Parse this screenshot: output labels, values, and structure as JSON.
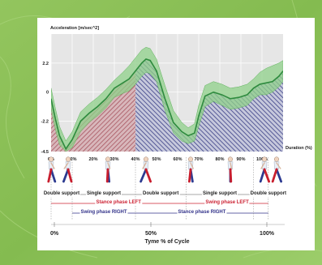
{
  "colors": {
    "stance_left": "#cc2233",
    "swing_right": "#33338a",
    "line_green": "#2e8b3e",
    "band_green": "#8fd08a",
    "area_red": "#a85560",
    "area_blue": "#3a3f86"
  },
  "chart_data": {
    "type": "line",
    "ylabel": "Acceleration [m/sec^2]",
    "xlabel": "Duration (%)",
    "y_ticks": [
      "2.2",
      "0",
      "-2.2",
      "-4.5"
    ],
    "x_ticks": [
      "0%",
      "10%",
      "20%",
      "30%",
      "40%",
      "50%",
      "60%",
      "70%",
      "80%",
      "90%",
      "100%"
    ],
    "xlim": [
      0,
      110
    ],
    "ylim": [
      -4.5,
      4.4
    ],
    "grid": true,
    "series": [
      {
        "x": [
          0,
          2,
          4,
          7,
          10,
          14,
          18,
          22,
          26,
          30,
          34,
          37,
          40,
          43,
          45,
          47,
          50,
          54,
          58,
          62,
          65,
          68,
          70,
          73,
          77,
          81,
          85,
          89,
          93,
          96,
          99,
          102,
          105,
          108,
          110
        ],
        "values": [
          -0.5,
          -2.0,
          -3.3,
          -4.3,
          -3.6,
          -2.2,
          -1.6,
          -1.1,
          -0.5,
          0.3,
          0.7,
          1.0,
          1.6,
          2.2,
          2.5,
          2.4,
          1.6,
          -0.5,
          -2.3,
          -3.0,
          -3.3,
          -3.1,
          -1.8,
          -0.3,
          0.0,
          -0.2,
          -0.5,
          -0.4,
          -0.2,
          0.3,
          0.6,
          0.7,
          0.8,
          1.2,
          1.6
        ],
        "upper": [
          0.3,
          -1.2,
          -2.6,
          -3.7,
          -3.0,
          -1.5,
          -0.9,
          -0.4,
          0.2,
          0.9,
          1.5,
          2.0,
          2.6,
          3.2,
          3.4,
          3.3,
          2.5,
          0.5,
          -1.4,
          -2.3,
          -2.7,
          -2.4,
          -1.0,
          0.5,
          0.8,
          0.6,
          0.3,
          0.4,
          0.6,
          1.0,
          1.5,
          1.8,
          2.0,
          2.2,
          2.4
        ],
        "lower": [
          -1.3,
          -2.8,
          -4.0,
          -4.5,
          -4.2,
          -3.0,
          -2.3,
          -1.8,
          -1.2,
          -0.4,
          -0.1,
          0.1,
          0.6,
          1.2,
          1.5,
          1.4,
          0.8,
          -1.4,
          -3.1,
          -3.7,
          -3.9,
          -3.7,
          -2.6,
          -1.1,
          -0.7,
          -1.0,
          -1.3,
          -1.2,
          -1.0,
          -0.5,
          -0.2,
          -0.2,
          0.0,
          0.4,
          0.8
        ]
      }
    ]
  },
  "phases": {
    "support": [
      {
        "label": "Double support",
        "start": 0,
        "end": 10
      },
      {
        "label": "Single support",
        "start": 10,
        "end": 40
      },
      {
        "label": "Double support",
        "start": 40,
        "end": 64
      },
      {
        "label": "Single support",
        "start": 64,
        "end": 96
      },
      {
        "label": "Double support",
        "start": 96,
        "end": 110
      }
    ],
    "stance_left": {
      "label": "Stance phase LEFT",
      "start": 0,
      "end": 64
    },
    "swing_left": {
      "label": "Swing phase LEFT",
      "start": 64,
      "end": 103
    },
    "swing_right": {
      "label": "Swing phase RIGHT",
      "start": 10,
      "end": 40
    },
    "stance_right": {
      "label": "Stance phase RIGHT",
      "start": 40,
      "end": 103
    }
  },
  "cycle_axis": {
    "ticks": [
      "0%",
      "50%",
      "100%"
    ],
    "title": "Tyme % of Cycle"
  },
  "walker_positions": [
    0,
    8,
    27,
    45,
    66,
    85,
    101,
    107
  ]
}
